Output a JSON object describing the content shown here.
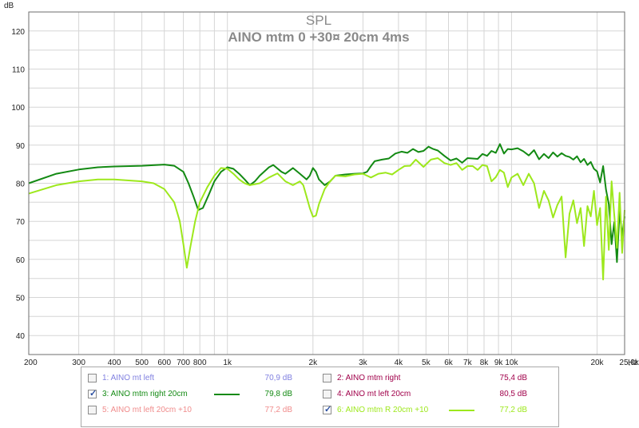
{
  "chart_data": {
    "type": "line",
    "title": "SPL",
    "subtitle": "AINO mtm 0 +30¤ 20cm 4ms",
    "ylabel": "dB",
    "xlabel": "Hz",
    "xscale": "log",
    "xlim": [
      200,
      25000
    ],
    "ylim": [
      35,
      125
    ],
    "grid": true,
    "y_ticks": [
      "40",
      "50",
      "60",
      "70",
      "80",
      "90",
      "100",
      "110",
      "120"
    ],
    "x_ticks": [
      {
        "v": 200,
        "label": "200"
      },
      {
        "v": 300,
        "label": "300"
      },
      {
        "v": 400,
        "label": "400"
      },
      {
        "v": 500,
        "label": "500"
      },
      {
        "v": 600,
        "label": "600"
      },
      {
        "v": 700,
        "label": "700"
      },
      {
        "v": 800,
        "label": "800"
      },
      {
        "v": 1000,
        "label": "1k"
      },
      {
        "v": 2000,
        "label": "2k"
      },
      {
        "v": 3000,
        "label": "3k"
      },
      {
        "v": 4000,
        "label": "4k"
      },
      {
        "v": 5000,
        "label": "5k"
      },
      {
        "v": 6000,
        "label": "6k"
      },
      {
        "v": 7000,
        "label": "7k"
      },
      {
        "v": 8000,
        "label": "8k"
      },
      {
        "v": 9000,
        "label": "9k"
      },
      {
        "v": 10000,
        "label": "10k"
      },
      {
        "v": 20000,
        "label": "20k"
      },
      {
        "v": 25000,
        "label": "25,0k"
      }
    ],
    "series": [
      {
        "name": "AINO mtm right 20cm",
        "color": "#138a13",
        "points": [
          [
            200,
            80
          ],
          [
            250,
            82.5
          ],
          [
            300,
            83.6
          ],
          [
            350,
            84.2
          ],
          [
            400,
            84.4
          ],
          [
            500,
            84.6
          ],
          [
            600,
            84.9
          ],
          [
            650,
            84.6
          ],
          [
            700,
            83
          ],
          [
            730,
            80
          ],
          [
            760,
            76.5
          ],
          [
            790,
            73
          ],
          [
            820,
            73.5
          ],
          [
            860,
            77
          ],
          [
            900,
            80.5
          ],
          [
            950,
            83
          ],
          [
            1000,
            84.2
          ],
          [
            1050,
            83.8
          ],
          [
            1100,
            82.5
          ],
          [
            1150,
            81
          ],
          [
            1200,
            79.5
          ],
          [
            1250,
            80.5
          ],
          [
            1300,
            82
          ],
          [
            1400,
            84.2
          ],
          [
            1450,
            84.8
          ],
          [
            1550,
            83
          ],
          [
            1600,
            82.5
          ],
          [
            1700,
            84
          ],
          [
            1800,
            82.5
          ],
          [
            1900,
            81
          ],
          [
            1950,
            82
          ],
          [
            2000,
            84
          ],
          [
            2050,
            83
          ],
          [
            2100,
            81
          ],
          [
            2200,
            79.5
          ],
          [
            2300,
            80.5
          ],
          [
            2400,
            82
          ],
          [
            2600,
            82.3
          ],
          [
            2800,
            82.5
          ],
          [
            3000,
            82.6
          ],
          [
            3100,
            83
          ],
          [
            3200,
            84.5
          ],
          [
            3300,
            85.8
          ],
          [
            3500,
            86.2
          ],
          [
            3700,
            86.5
          ],
          [
            3900,
            87.8
          ],
          [
            4100,
            88.3
          ],
          [
            4300,
            88
          ],
          [
            4500,
            89
          ],
          [
            4700,
            88.2
          ],
          [
            4900,
            88.5
          ],
          [
            5100,
            89.6
          ],
          [
            5300,
            89
          ],
          [
            5500,
            88.6
          ],
          [
            5800,
            87.2
          ],
          [
            6100,
            86
          ],
          [
            6400,
            86.5
          ],
          [
            6700,
            85.4
          ],
          [
            7000,
            86.6
          ],
          [
            7300,
            86.5
          ],
          [
            7600,
            86.4
          ],
          [
            7900,
            87.7
          ],
          [
            8200,
            87.2
          ],
          [
            8500,
            88.5
          ],
          [
            8800,
            88
          ],
          [
            9100,
            90.3
          ],
          [
            9400,
            87.8
          ],
          [
            9700,
            89
          ],
          [
            10000,
            88.9
          ],
          [
            10500,
            89.2
          ],
          [
            11000,
            88.4
          ],
          [
            11500,
            87.3
          ],
          [
            12000,
            88.7
          ],
          [
            12500,
            86.3
          ],
          [
            13000,
            87.7
          ],
          [
            13500,
            86.6
          ],
          [
            14000,
            88.1
          ],
          [
            14500,
            87
          ],
          [
            15000,
            87.9
          ],
          [
            15500,
            87.2
          ],
          [
            16000,
            86.9
          ],
          [
            16500,
            86.2
          ],
          [
            17000,
            87.1
          ],
          [
            17500,
            85.5
          ],
          [
            18000,
            86.4
          ],
          [
            18500,
            84.8
          ],
          [
            19000,
            85.6
          ],
          [
            19500,
            83.8
          ],
          [
            20000,
            83.1
          ],
          [
            20500,
            80.2
          ],
          [
            21000,
            84.5
          ],
          [
            21500,
            78.3
          ],
          [
            22000,
            74.5
          ],
          [
            22500,
            64
          ],
          [
            23000,
            69.8
          ],
          [
            23500,
            59.3
          ],
          [
            24000,
            72.8
          ],
          [
            24500,
            66.2
          ],
          [
            25000,
            71.3
          ]
        ]
      },
      {
        "name": "AINO mtm R 20cm +10",
        "color": "#9de81c",
        "points": [
          [
            200,
            77.3
          ],
          [
            250,
            79.5
          ],
          [
            300,
            80.5
          ],
          [
            350,
            81
          ],
          [
            400,
            81
          ],
          [
            500,
            80.5
          ],
          [
            550,
            80
          ],
          [
            600,
            78.5
          ],
          [
            650,
            75
          ],
          [
            680,
            70
          ],
          [
            700,
            64
          ],
          [
            720,
            57.8
          ],
          [
            740,
            63
          ],
          [
            770,
            70
          ],
          [
            800,
            75
          ],
          [
            850,
            79
          ],
          [
            900,
            82
          ],
          [
            950,
            84
          ],
          [
            1000,
            83.8
          ],
          [
            1050,
            82.5
          ],
          [
            1100,
            81
          ],
          [
            1150,
            80
          ],
          [
            1200,
            79.5
          ],
          [
            1300,
            80
          ],
          [
            1400,
            81.5
          ],
          [
            1500,
            82.6
          ],
          [
            1600,
            80.5
          ],
          [
            1700,
            79.5
          ],
          [
            1800,
            80.5
          ],
          [
            1850,
            79.5
          ],
          [
            1900,
            76.5
          ],
          [
            1950,
            73.5
          ],
          [
            2000,
            71.2
          ],
          [
            2050,
            71.5
          ],
          [
            2100,
            74.5
          ],
          [
            2200,
            78.5
          ],
          [
            2300,
            80.5
          ],
          [
            2400,
            82
          ],
          [
            2600,
            81.8
          ],
          [
            2800,
            82.3
          ],
          [
            3000,
            82.5
          ],
          [
            3200,
            81.5
          ],
          [
            3400,
            82.5
          ],
          [
            3600,
            82.8
          ],
          [
            3800,
            82.3
          ],
          [
            4000,
            83.5
          ],
          [
            4200,
            84.5
          ],
          [
            4400,
            84.6
          ],
          [
            4600,
            86.2
          ],
          [
            4900,
            84.3
          ],
          [
            5200,
            86.2
          ],
          [
            5500,
            86.6
          ],
          [
            5800,
            85.3
          ],
          [
            6100,
            84.8
          ],
          [
            6400,
            85.3
          ],
          [
            6700,
            83.5
          ],
          [
            7000,
            84.5
          ],
          [
            7300,
            84.5
          ],
          [
            7600,
            83.5
          ],
          [
            7900,
            84.8
          ],
          [
            8200,
            84.5
          ],
          [
            8500,
            80.5
          ],
          [
            8800,
            81.6
          ],
          [
            9100,
            83.5
          ],
          [
            9400,
            82.8
          ],
          [
            9700,
            79
          ],
          [
            10000,
            81.5
          ],
          [
            10500,
            82.5
          ],
          [
            11000,
            79.5
          ],
          [
            11500,
            82.5
          ],
          [
            12000,
            80
          ],
          [
            12500,
            73.5
          ],
          [
            13000,
            78
          ],
          [
            13500,
            75.5
          ],
          [
            14000,
            71
          ],
          [
            14500,
            74.3
          ],
          [
            15000,
            76.5
          ],
          [
            15500,
            60.5
          ],
          [
            16000,
            72
          ],
          [
            16500,
            75.5
          ],
          [
            17000,
            69.5
          ],
          [
            17500,
            73.5
          ],
          [
            18000,
            63.5
          ],
          [
            18500,
            74
          ],
          [
            19000,
            71.3
          ],
          [
            19500,
            78
          ],
          [
            20000,
            69
          ],
          [
            20500,
            73.5
          ],
          [
            21000,
            54.7
          ],
          [
            21500,
            76.5
          ],
          [
            22000,
            62.5
          ],
          [
            22500,
            80.5
          ],
          [
            23000,
            71.5
          ],
          [
            23500,
            63
          ],
          [
            24000,
            77.5
          ],
          [
            24500,
            61.7
          ],
          [
            25000,
            73
          ]
        ]
      }
    ]
  },
  "legend": {
    "entries": [
      {
        "name": "1: AINO mt left",
        "value": "70,9 dB",
        "color": "#8080e0",
        "checked": false,
        "show_line": false
      },
      {
        "name": "2: AINO mtm right",
        "value": "75,4 dB",
        "color": "#a0004a",
        "checked": false,
        "show_line": false
      },
      {
        "name": "3: AINO mtm right 20cm",
        "value": "79,8 dB",
        "color": "#138a13",
        "checked": true,
        "show_line": true
      },
      {
        "name": "4: AINO mt left 20cm",
        "value": "80,5 dB",
        "color": "#a0004a",
        "checked": false,
        "show_line": false
      },
      {
        "name": "5: AINO mt left 20cm +10",
        "value": "77,2 dB",
        "color": "#f08c8c",
        "checked": false,
        "show_line": false
      },
      {
        "name": "6: AINO mtm R 20cm +10",
        "value": "77,2 dB",
        "color": "#9de81c",
        "checked": true,
        "show_line": true
      }
    ]
  }
}
